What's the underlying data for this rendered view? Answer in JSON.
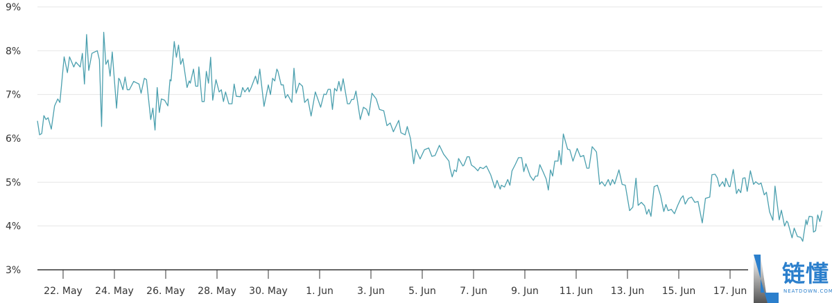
{
  "chart_data": {
    "type": "line",
    "title": "",
    "xlabel": "",
    "ylabel": "",
    "ylim": [
      3,
      9
    ],
    "xlim": [
      "05-21 00",
      "06-20 14"
    ],
    "grid": true,
    "line_color": "#4a9fae",
    "y_ticks": [
      "3%",
      "4%",
      "5%",
      "6%",
      "7%",
      "8%",
      "9%"
    ],
    "y_tick_values": [
      3,
      4,
      5,
      6,
      7,
      8,
      9
    ],
    "x_ticks": [
      {
        "label": "22. May",
        "date": "05-22 00"
      },
      {
        "label": "24. May",
        "date": "05-24 00"
      },
      {
        "label": "26. May",
        "date": "05-26 00"
      },
      {
        "label": "28. May",
        "date": "05-28 00"
      },
      {
        "label": "30. May",
        "date": "05-30 00"
      },
      {
        "label": "1. Jun",
        "date": "06-01 00"
      },
      {
        "label": "3. Jun",
        "date": "06-03 00"
      },
      {
        "label": "5. Jun",
        "date": "06-05 00"
      },
      {
        "label": "7. Jun",
        "date": "06-07 00"
      },
      {
        "label": "9. Jun",
        "date": "06-09 00"
      },
      {
        "label": "11. Jun",
        "date": "06-11 00"
      },
      {
        "label": "13. Jun",
        "date": "06-13 00"
      },
      {
        "label": "15. Jun",
        "date": "06-15 00"
      },
      {
        "label": "17. Jun",
        "date": "06-17 00"
      }
    ],
    "points": [
      [
        "05-21 00",
        6.4
      ],
      [
        "05-21 02",
        6.08
      ],
      [
        "05-21 04",
        6.11
      ],
      [
        "05-21 06",
        6.52
      ],
      [
        "05-21 08",
        6.43
      ],
      [
        "05-21 10",
        6.47
      ],
      [
        "05-21 13",
        6.21
      ],
      [
        "05-21 16",
        6.74
      ],
      [
        "05-21 19",
        6.9
      ],
      [
        "05-21 21",
        6.82
      ],
      [
        "05-22 01",
        7.86
      ],
      [
        "05-22 04",
        7.5
      ],
      [
        "05-22 06",
        7.86
      ],
      [
        "05-22 10",
        7.63
      ],
      [
        "05-22 12",
        7.74
      ],
      [
        "05-22 16",
        7.63
      ],
      [
        "05-22 18",
        7.94
      ],
      [
        "05-22 20",
        7.24
      ],
      [
        "05-22 22",
        8.37
      ],
      [
        "05-23 00",
        7.55
      ],
      [
        "05-23 03",
        7.94
      ],
      [
        "05-23 08",
        8.0
      ],
      [
        "05-23 10",
        7.79
      ],
      [
        "05-23 12",
        6.27
      ],
      [
        "05-23 14",
        8.42
      ],
      [
        "05-23 16",
        7.69
      ],
      [
        "05-23 18",
        7.79
      ],
      [
        "05-23 20",
        7.42
      ],
      [
        "05-23 22",
        7.97
      ],
      [
        "05-24 02",
        6.69
      ],
      [
        "05-24 04",
        7.37
      ],
      [
        "05-24 05",
        7.34
      ],
      [
        "05-24 08",
        7.11
      ],
      [
        "05-24 10",
        7.4
      ],
      [
        "05-24 12",
        7.11
      ],
      [
        "05-24 14",
        7.11
      ],
      [
        "05-24 18",
        7.3
      ],
      [
        "05-24 23",
        7.24
      ],
      [
        "05-25 01",
        7.03
      ],
      [
        "05-25 04",
        7.37
      ],
      [
        "05-25 06",
        7.34
      ],
      [
        "05-25 10",
        6.43
      ],
      [
        "05-25 12",
        6.69
      ],
      [
        "05-25 14",
        6.19
      ],
      [
        "05-25 16",
        7.16
      ],
      [
        "05-25 18",
        6.59
      ],
      [
        "05-25 20",
        6.9
      ],
      [
        "05-25 23",
        6.87
      ],
      [
        "05-26 02",
        6.74
      ],
      [
        "05-26 04",
        7.34
      ],
      [
        "05-26 05",
        7.31
      ],
      [
        "05-26 08",
        8.21
      ],
      [
        "05-26 10",
        7.85
      ],
      [
        "05-26 12",
        8.13
      ],
      [
        "05-26 14",
        7.69
      ],
      [
        "05-26 16",
        7.82
      ],
      [
        "05-26 20",
        7.16
      ],
      [
        "05-26 22",
        7.31
      ],
      [
        "05-26 23",
        7.26
      ],
      [
        "05-27 02",
        7.58
      ],
      [
        "05-27 04",
        7.19
      ],
      [
        "05-27 06",
        7.19
      ],
      [
        "05-27 07",
        7.63
      ],
      [
        "05-27 10",
        6.84
      ],
      [
        "05-27 12",
        6.84
      ],
      [
        "05-27 14",
        7.53
      ],
      [
        "05-27 16",
        7.26
      ],
      [
        "05-27 18",
        7.85
      ],
      [
        "05-27 20",
        6.87
      ],
      [
        "05-27 23",
        7.34
      ],
      [
        "05-28 02",
        7.06
      ],
      [
        "05-28 04",
        7.11
      ],
      [
        "05-28 06",
        6.84
      ],
      [
        "05-28 08",
        7.06
      ],
      [
        "05-28 11",
        6.79
      ],
      [
        "05-28 14",
        6.79
      ],
      [
        "05-28 16",
        7.24
      ],
      [
        "05-28 18",
        6.96
      ],
      [
        "05-28 22",
        6.95
      ],
      [
        "05-29 00",
        7.16
      ],
      [
        "05-29 02",
        7.06
      ],
      [
        "05-29 05",
        7.16
      ],
      [
        "05-29 06",
        7.06
      ],
      [
        "05-29 08",
        7.16
      ],
      [
        "05-29 12",
        7.42
      ],
      [
        "05-29 14",
        7.24
      ],
      [
        "05-29 16",
        7.58
      ],
      [
        "05-29 20",
        6.73
      ],
      [
        "05-30 00",
        7.22
      ],
      [
        "05-30 02",
        7.0
      ],
      [
        "05-30 04",
        7.37
      ],
      [
        "05-30 06",
        7.31
      ],
      [
        "05-30 08",
        7.58
      ],
      [
        "05-30 09",
        7.53
      ],
      [
        "05-30 12",
        7.22
      ],
      [
        "05-30 14",
        7.22
      ],
      [
        "05-30 16",
        6.92
      ],
      [
        "05-30 18",
        7.0
      ],
      [
        "05-30 22",
        6.82
      ],
      [
        "05-31 00",
        7.6
      ],
      [
        "05-31 02",
        7.03
      ],
      [
        "05-31 05",
        7.26
      ],
      [
        "05-31 08",
        7.19
      ],
      [
        "05-31 10",
        6.82
      ],
      [
        "05-31 13",
        6.9
      ],
      [
        "05-31 16",
        6.51
      ],
      [
        "05-31 20",
        7.06
      ],
      [
        "05-31 22",
        6.92
      ],
      [
        "06-01 01",
        6.71
      ],
      [
        "06-01 04",
        7.01
      ],
      [
        "06-01 06",
        7.0
      ],
      [
        "06-01 08",
        7.12
      ],
      [
        "06-01 10",
        7.12
      ],
      [
        "06-01 12",
        6.66
      ],
      [
        "06-01 14",
        7.14
      ],
      [
        "06-01 16",
        7.08
      ],
      [
        "06-01 18",
        7.3
      ],
      [
        "06-01 20",
        7.08
      ],
      [
        "06-01 22",
        7.36
      ],
      [
        "06-02 02",
        6.79
      ],
      [
        "06-02 04",
        6.79
      ],
      [
        "06-02 06",
        6.89
      ],
      [
        "06-02 08",
        6.89
      ],
      [
        "06-02 10",
        7.08
      ],
      [
        "06-02 14",
        6.43
      ],
      [
        "06-02 17",
        6.71
      ],
      [
        "06-02 20",
        6.66
      ],
      [
        "06-02 22",
        6.52
      ],
      [
        "06-03 01",
        7.03
      ],
      [
        "06-03 05",
        6.9
      ],
      [
        "06-03 08",
        6.66
      ],
      [
        "06-03 12",
        6.63
      ],
      [
        "06-03 15",
        6.29
      ],
      [
        "06-03 18",
        6.35
      ],
      [
        "06-03 21",
        6.15
      ],
      [
        "06-04 02",
        6.41
      ],
      [
        "06-04 04",
        6.13
      ],
      [
        "06-04 08",
        6.08
      ],
      [
        "06-04 10",
        6.27
      ],
      [
        "06-04 13",
        6.0
      ],
      [
        "06-04 16",
        5.42
      ],
      [
        "06-04 18",
        5.75
      ],
      [
        "06-04 22",
        5.53
      ],
      [
        "06-05 02",
        5.74
      ],
      [
        "06-05 06",
        5.78
      ],
      [
        "06-05 09",
        5.59
      ],
      [
        "06-05 12",
        5.61
      ],
      [
        "06-05 16",
        5.84
      ],
      [
        "06-05 20",
        5.64
      ],
      [
        "06-06 01",
        5.48
      ],
      [
        "06-06 02",
        5.32
      ],
      [
        "06-06 04",
        5.12
      ],
      [
        "06-06 06",
        5.28
      ],
      [
        "06-06 08",
        5.24
      ],
      [
        "06-06 10",
        5.54
      ],
      [
        "06-06 14",
        5.37
      ],
      [
        "06-06 15",
        5.39
      ],
      [
        "06-06 18",
        5.58
      ],
      [
        "06-06 20",
        5.58
      ],
      [
        "06-06 22",
        5.39
      ],
      [
        "06-07 01",
        5.34
      ],
      [
        "06-07 04",
        5.26
      ],
      [
        "06-07 06",
        5.34
      ],
      [
        "06-07 09",
        5.31
      ],
      [
        "06-07 12",
        5.37
      ],
      [
        "06-07 16",
        5.17
      ],
      [
        "06-07 20",
        4.87
      ],
      [
        "06-07 22",
        5.04
      ],
      [
        "06-08 01",
        4.84
      ],
      [
        "06-08 02",
        4.93
      ],
      [
        "06-08 05",
        4.89
      ],
      [
        "06-08 08",
        5.06
      ],
      [
        "06-08 10",
        4.93
      ],
      [
        "06-08 12",
        5.26
      ],
      [
        "06-08 15",
        5.4
      ],
      [
        "06-08 18",
        5.56
      ],
      [
        "06-08 21",
        5.56
      ],
      [
        "06-08 23",
        5.24
      ],
      [
        "06-09 01",
        5.42
      ],
      [
        "06-09 05",
        5.14
      ],
      [
        "06-09 08",
        5.04
      ],
      [
        "06-09 10",
        5.14
      ],
      [
        "06-09 12",
        5.14
      ],
      [
        "06-09 14",
        5.4
      ],
      [
        "06-09 17",
        5.24
      ],
      [
        "06-09 20",
        5.07
      ],
      [
        "06-09 22",
        4.82
      ],
      [
        "06-10 00",
        5.28
      ],
      [
        "06-10 02",
        5.14
      ],
      [
        "06-10 04",
        5.48
      ],
      [
        "06-10 07",
        5.48
      ],
      [
        "06-10 08",
        5.72
      ],
      [
        "06-10 10",
        5.4
      ],
      [
        "06-10 12",
        6.1
      ],
      [
        "06-10 16",
        5.75
      ],
      [
        "06-10 18",
        5.74
      ],
      [
        "06-10 21",
        5.48
      ],
      [
        "06-11 01",
        5.77
      ],
      [
        "06-11 04",
        5.58
      ],
      [
        "06-11 07",
        5.61
      ],
      [
        "06-11 10",
        5.32
      ],
      [
        "06-11 12",
        5.32
      ],
      [
        "06-11 15",
        5.81
      ],
      [
        "06-11 19",
        5.69
      ],
      [
        "06-11 22",
        4.95
      ],
      [
        "06-12 00",
        5.01
      ],
      [
        "06-12 03",
        4.91
      ],
      [
        "06-12 06",
        5.06
      ],
      [
        "06-12 08",
        4.93
      ],
      [
        "06-12 10",
        5.06
      ],
      [
        "06-12 12",
        4.96
      ],
      [
        "06-12 16",
        5.28
      ],
      [
        "06-12 19",
        4.95
      ],
      [
        "06-12 22",
        4.93
      ],
      [
        "06-13 02",
        4.35
      ],
      [
        "06-13 05",
        4.43
      ],
      [
        "06-13 08",
        5.09
      ],
      [
        "06-13 10",
        4.47
      ],
      [
        "06-13 13",
        4.54
      ],
      [
        "06-13 16",
        4.46
      ],
      [
        "06-13 18",
        4.27
      ],
      [
        "06-13 20",
        4.38
      ],
      [
        "06-13 22",
        4.22
      ],
      [
        "06-14 01",
        4.9
      ],
      [
        "06-14 04",
        4.93
      ],
      [
        "06-14 07",
        4.69
      ],
      [
        "06-14 10",
        4.33
      ],
      [
        "06-14 12",
        4.49
      ],
      [
        "06-14 14",
        4.35
      ],
      [
        "06-14 17",
        4.38
      ],
      [
        "06-14 20",
        4.28
      ],
      [
        "06-14 23",
        4.47
      ],
      [
        "06-15 02",
        4.63
      ],
      [
        "06-15 04",
        4.69
      ],
      [
        "06-15 06",
        4.5
      ],
      [
        "06-15 09",
        4.63
      ],
      [
        "06-15 12",
        4.66
      ],
      [
        "06-15 15",
        4.54
      ],
      [
        "06-15 18",
        4.56
      ],
      [
        "06-15 22",
        4.07
      ],
      [
        "06-16 01",
        4.63
      ],
      [
        "06-16 05",
        4.66
      ],
      [
        "06-16 07",
        5.17
      ],
      [
        "06-16 10",
        5.18
      ],
      [
        "06-16 12",
        5.1
      ],
      [
        "06-16 14",
        4.9
      ],
      [
        "06-16 17",
        5.01
      ],
      [
        "06-16 19",
        4.9
      ],
      [
        "06-16 20",
        5.09
      ],
      [
        "06-16 23",
        4.9
      ],
      [
        "06-17 00",
        4.9
      ],
      [
        "06-17 03",
        5.29
      ],
      [
        "06-17 06",
        4.74
      ],
      [
        "06-17 08",
        4.84
      ],
      [
        "06-17 10",
        4.76
      ],
      [
        "06-17 12",
        5.09
      ],
      [
        "06-17 14",
        5.1
      ],
      [
        "06-17 16",
        4.79
      ],
      [
        "06-17 19",
        5.26
      ],
      [
        "06-17 22",
        4.95
      ],
      [
        "06-18 00",
        5.01
      ],
      [
        "06-18 03",
        4.95
      ],
      [
        "06-18 05",
        4.98
      ],
      [
        "06-18 08",
        4.71
      ],
      [
        "06-18 10",
        4.77
      ],
      [
        "06-18 13",
        4.32
      ],
      [
        "06-18 16",
        4.13
      ],
      [
        "06-18 18",
        4.91
      ],
      [
        "06-18 22",
        4.14
      ],
      [
        "06-19 00",
        4.36
      ],
      [
        "06-19 03",
        4.0
      ],
      [
        "06-19 05",
        4.11
      ],
      [
        "06-19 06",
        4.08
      ],
      [
        "06-19 10",
        3.73
      ],
      [
        "06-19 12",
        3.95
      ],
      [
        "06-19 15",
        3.76
      ],
      [
        "06-19 18",
        3.74
      ],
      [
        "06-19 20",
        3.65
      ],
      [
        "06-19 23",
        4.14
      ],
      [
        "06-20 00",
        4.03
      ],
      [
        "06-20 02",
        4.22
      ],
      [
        "06-20 05",
        4.21
      ],
      [
        "06-20 06",
        3.86
      ],
      [
        "06-20 08",
        3.89
      ],
      [
        "06-20 10",
        4.25
      ],
      [
        "06-20 12",
        4.1
      ],
      [
        "06-20 14",
        4.35
      ]
    ]
  },
  "watermark": {
    "brand_cn": "链懂",
    "brand_en": "NEATDOWN.COM",
    "color": "#2b7fcc"
  }
}
